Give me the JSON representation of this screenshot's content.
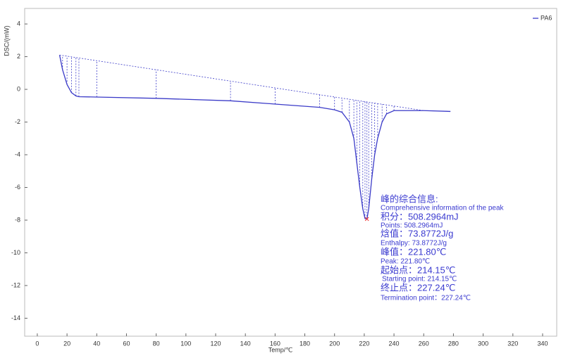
{
  "chart_data": {
    "type": "line",
    "xlabel": "Temp/℃",
    "ylabel": "DSC/(mW)",
    "x": [
      15,
      17,
      20,
      23,
      26,
      28,
      40,
      80,
      130,
      160,
      190,
      200,
      205,
      210,
      213,
      215,
      217,
      219,
      220.5,
      221.8,
      223,
      225,
      227,
      229,
      232,
      235,
      240,
      260,
      278
    ],
    "series": [
      {
        "name": "PA6",
        "color": "#3b3bc8",
        "values": [
          2.1,
          1.2,
          0.3,
          -0.2,
          -0.4,
          -0.45,
          -0.47,
          -0.55,
          -0.7,
          -0.9,
          -1.1,
          -1.25,
          -1.4,
          -2,
          -3,
          -4.5,
          -6,
          -7.3,
          -7.9,
          -7.93,
          -7.3,
          -5.5,
          -4,
          -3,
          -2,
          -1.5,
          -1.3,
          -1.3,
          -1.35
        ]
      }
    ],
    "xlim": [
      -8.5,
      349.5
    ],
    "ylim": [
      -15.1,
      4.95
    ],
    "xticks": [
      0,
      20,
      40,
      60,
      80,
      100,
      120,
      140,
      160,
      180,
      200,
      220,
      240,
      260,
      280,
      300,
      320,
      340
    ],
    "yticks": [
      -14,
      -12,
      -10,
      -8,
      -6,
      -4,
      -2,
      0,
      2,
      4
    ],
    "legend": "upper right",
    "grid": false,
    "annotations": [
      "峰的综合信息:",
      "Comprehensive information of the peak",
      "积分：508.2964mJ",
      "Points: 508.2964mJ",
      "焓值：73.8772J/g",
      "Enthalpy: 73.8772J/g",
      "峰值：221.80℃",
      "Peak: 221.80℃",
      "起始点：214.15℃",
      "Starting point: 214.15℃",
      "终止点：227.24℃",
      "Termination point：227.24℃"
    ]
  }
}
